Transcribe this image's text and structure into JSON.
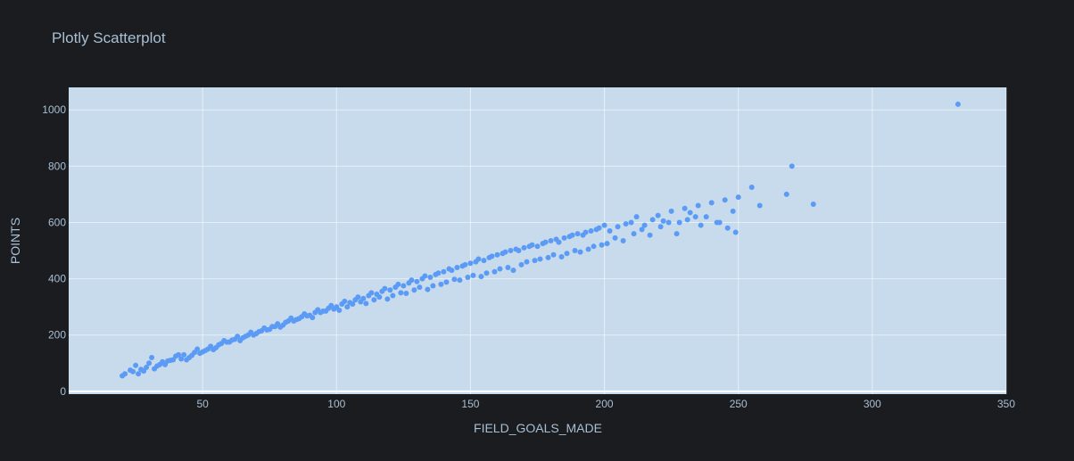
{
  "chart_data": {
    "type": "scatter",
    "title": "Plotly Scatterplot",
    "xlabel": "FIELD_GOALS_MADE",
    "ylabel": "POINTS",
    "xlim": [
      0,
      350
    ],
    "ylim": [
      -10,
      1080
    ],
    "x_ticks": [
      "50",
      "100",
      "150",
      "200",
      "250",
      "300",
      "350"
    ],
    "y_ticks": [
      "0",
      "200",
      "400",
      "600",
      "800",
      "1000"
    ],
    "grid": true,
    "legend": "none",
    "marker_color": "#5b9bf5",
    "plot_background": "#c8dbed",
    "paper_background": "#1a1c1f",
    "series": [
      {
        "x": [
          20,
          23,
          25,
          26,
          28,
          30,
          31,
          32,
          33,
          35,
          36,
          38,
          40,
          42,
          43,
          45,
          47,
          48,
          50,
          52,
          53,
          55,
          57,
          58,
          60,
          62,
          63,
          65,
          67,
          68,
          70,
          72,
          73,
          75,
          77,
          78,
          80,
          82,
          83,
          85,
          87,
          88,
          90,
          92,
          93,
          95,
          97,
          98,
          100,
          102,
          103,
          105,
          107,
          108,
          110,
          112,
          113,
          115,
          117,
          118,
          120,
          122,
          123,
          125,
          127,
          128,
          130,
          132,
          133,
          135,
          137,
          138,
          140,
          142,
          143,
          145,
          147,
          148,
          150,
          152,
          153,
          155,
          157,
          158,
          160,
          162,
          163,
          165,
          167,
          168,
          170,
          172,
          173,
          175,
          177,
          178,
          180,
          182,
          183,
          185,
          187,
          188,
          190,
          192,
          193,
          195,
          197,
          198,
          200,
          202,
          205,
          208,
          210,
          212,
          215,
          218,
          220,
          222,
          225,
          228,
          230,
          232,
          235,
          238,
          240,
          243,
          245,
          248,
          250,
          255,
          258,
          268,
          270,
          278,
          332,
          21,
          24,
          27,
          29,
          34,
          37,
          39,
          41,
          44,
          46,
          49,
          51,
          54,
          56,
          59,
          61,
          64,
          66,
          69,
          71,
          74,
          76,
          79,
          81,
          84,
          86,
          89,
          91,
          94,
          96,
          99,
          101,
          104,
          106,
          109,
          111,
          114,
          116,
          119,
          121,
          124,
          126,
          129,
          131,
          134,
          136,
          139,
          141,
          144,
          146,
          149,
          151,
          154,
          156,
          159,
          161,
          164,
          166,
          169,
          171,
          174,
          176,
          179,
          181,
          184,
          186,
          189,
          191,
          194,
          196,
          199,
          201,
          204,
          207,
          211,
          214,
          217,
          221,
          224,
          227,
          231,
          234,
          236,
          242,
          246,
          249
        ],
        "y": [
          55,
          75,
          92,
          62,
          72,
          100,
          120,
          80,
          90,
          105,
          95,
          110,
          125,
          115,
          130,
          120,
          138,
          150,
          140,
          150,
          160,
          155,
          170,
          180,
          175,
          185,
          195,
          190,
          200,
          210,
          205,
          215,
          225,
          220,
          230,
          240,
          235,
          250,
          260,
          255,
          265,
          275,
          270,
          280,
          290,
          285,
          295,
          305,
          300,
          310,
          320,
          315,
          325,
          335,
          330,
          340,
          350,
          345,
          355,
          365,
          360,
          370,
          380,
          375,
          385,
          395,
          390,
          400,
          410,
          405,
          415,
          420,
          425,
          435,
          430,
          440,
          445,
          450,
          455,
          460,
          470,
          465,
          475,
          480,
          485,
          490,
          495,
          500,
          505,
          500,
          510,
          515,
          520,
          515,
          525,
          530,
          535,
          540,
          530,
          545,
          550,
          555,
          560,
          555,
          565,
          570,
          575,
          580,
          590,
          570,
          585,
          595,
          600,
          620,
          590,
          610,
          625,
          605,
          640,
          600,
          650,
          635,
          660,
          620,
          670,
          600,
          680,
          640,
          690,
          725,
          660,
          700,
          800,
          665,
          1020,
          62,
          70,
          78,
          85,
          95,
          108,
          112,
          130,
          112,
          128,
          135,
          145,
          148,
          165,
          175,
          182,
          180,
          195,
          200,
          212,
          218,
          230,
          228,
          245,
          250,
          258,
          268,
          262,
          280,
          285,
          292,
          288,
          300,
          310,
          318,
          312,
          325,
          335,
          328,
          340,
          350,
          348,
          360,
          370,
          362,
          375,
          380,
          388,
          398,
          395,
          405,
          412,
          408,
          420,
          425,
          435,
          440,
          430,
          450,
          460,
          465,
          470,
          475,
          485,
          478,
          490,
          500,
          495,
          505,
          515,
          520,
          525,
          545,
          535,
          560,
          575,
          555,
          585,
          600,
          560,
          610,
          620,
          590,
          600,
          580,
          565
        ]
      }
    ]
  }
}
